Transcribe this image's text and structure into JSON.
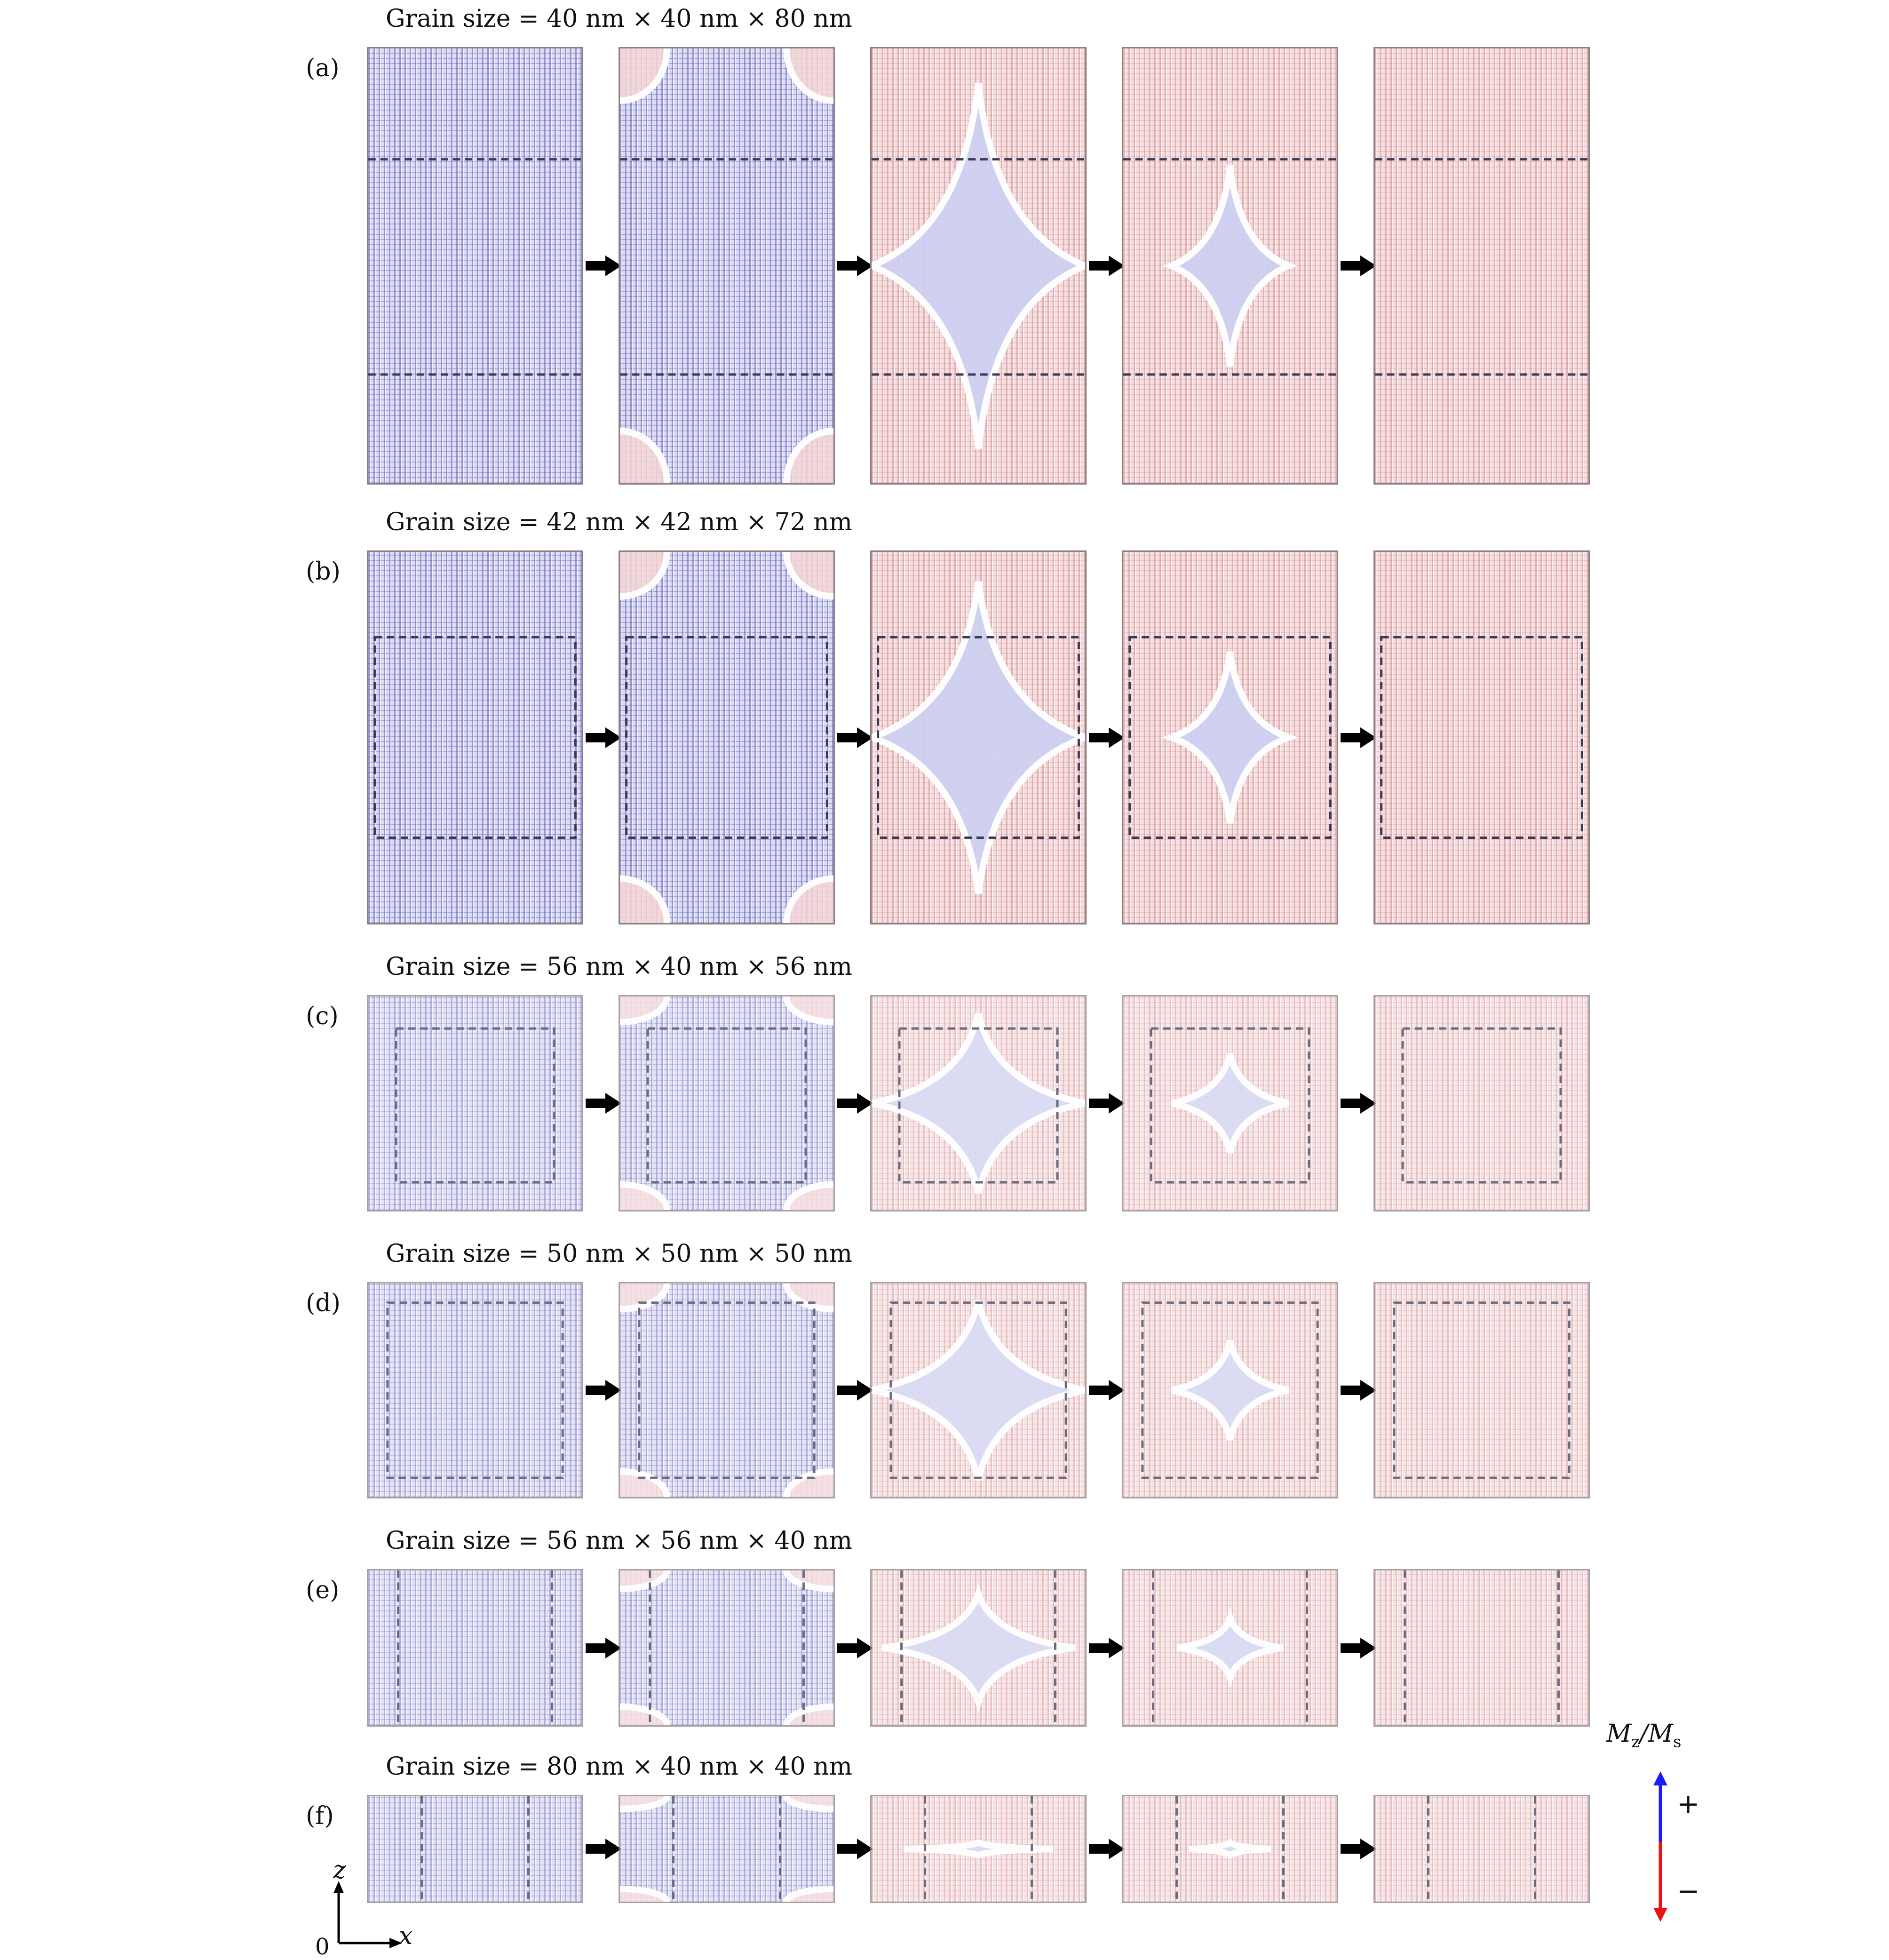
{
  "rows": [
    {
      "label": "(a)",
      "title": "Grain size = 40 nm × 40 nm × 80 nm",
      "states": [
        "blue",
        "blue-nucleating",
        "mixed",
        "mostly-red",
        "red"
      ]
    },
    {
      "label": "(b)",
      "title": "Grain size = 42 nm × 42 nm × 72 nm",
      "states": [
        "blue",
        "blue-nucleating",
        "mixed",
        "mostly-red",
        "red"
      ]
    },
    {
      "label": "(c)",
      "title": "Grain size = 56 nm × 40 nm × 56 nm",
      "states": [
        "blue",
        "blue-nucleating",
        "mixed",
        "mostly-red",
        "red"
      ]
    },
    {
      "label": "(d)",
      "title": "Grain size = 50 nm × 50 nm × 50 nm",
      "states": [
        "blue",
        "blue-nucleating",
        "mixed",
        "mostly-red",
        "red"
      ]
    },
    {
      "label": "(e)",
      "title": "Grain size = 56 nm × 56 nm × 40 nm",
      "states": [
        "blue",
        "blue-nucleating",
        "mixed",
        "mostly-red",
        "red"
      ]
    },
    {
      "label": "(f)",
      "title": "Grain size = 80 nm × 40 nm × 40 nm",
      "states": [
        "blue",
        "blue-nucleating",
        "mixed",
        "mostly-red",
        "red"
      ]
    }
  ],
  "legend": {
    "title_main": "M",
    "title_sub1": "z",
    "title_slash": "/M",
    "title_sub2": "s",
    "plus": "+",
    "minus": "−",
    "up_color": "#1a1aff",
    "down_color": "#ee1111"
  },
  "axes": {
    "vertical": "z",
    "horizontal": "x",
    "origin": "0"
  },
  "colors": {
    "blue_domain": "#dcdcf3",
    "red_domain": "#f6dede",
    "arrow": "#000000"
  }
}
